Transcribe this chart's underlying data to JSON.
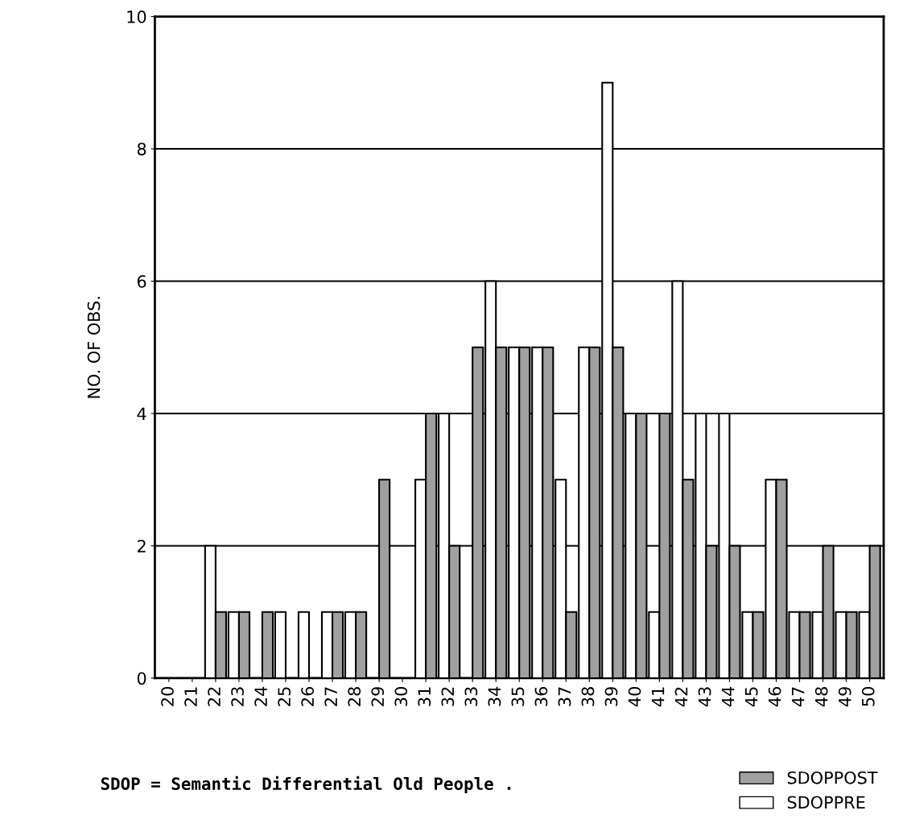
{
  "chart_data": {
    "type": "bar",
    "ylabel": "NO. OF OBS.",
    "categories": [
      "20",
      "21",
      "22",
      "23",
      "24",
      "25",
      "26",
      "27",
      "28",
      "29",
      "30",
      "31",
      "32",
      "33",
      "34",
      "35",
      "36",
      "37",
      "38",
      "39",
      "40",
      "41",
      "42",
      "43",
      "44",
      "45",
      "46",
      "47",
      "48",
      "49",
      "50"
    ],
    "series": [
      {
        "name": "SDOPPRE",
        "color": "#ffffff",
        "values": [
          0,
          0,
          2,
          1,
          0,
          1,
          1,
          1,
          1,
          0,
          0,
          3,
          4,
          0,
          6,
          5,
          5,
          3,
          5,
          9,
          4,
          1,
          6,
          4,
          4,
          1,
          3,
          1,
          1,
          1,
          1
        ]
      },
      {
        "name": "SDOPPOST",
        "color": "#a0a0a0",
        "values": [
          0,
          0,
          1,
          1,
          1,
          0,
          0,
          1,
          1,
          3,
          0,
          4,
          2,
          5,
          5,
          5,
          5,
          1,
          5,
          5,
          4,
          4,
          3,
          2,
          2,
          1,
          3,
          1,
          2,
          1,
          2
        ]
      }
    ],
    "ylim": [
      0,
      10
    ],
    "yticks": [
      0,
      2,
      4,
      6,
      8,
      10
    ],
    "grid": "y",
    "legend": "bottom right",
    "annotations": [
      "SDOP = Semantic Differential Old People ."
    ]
  }
}
